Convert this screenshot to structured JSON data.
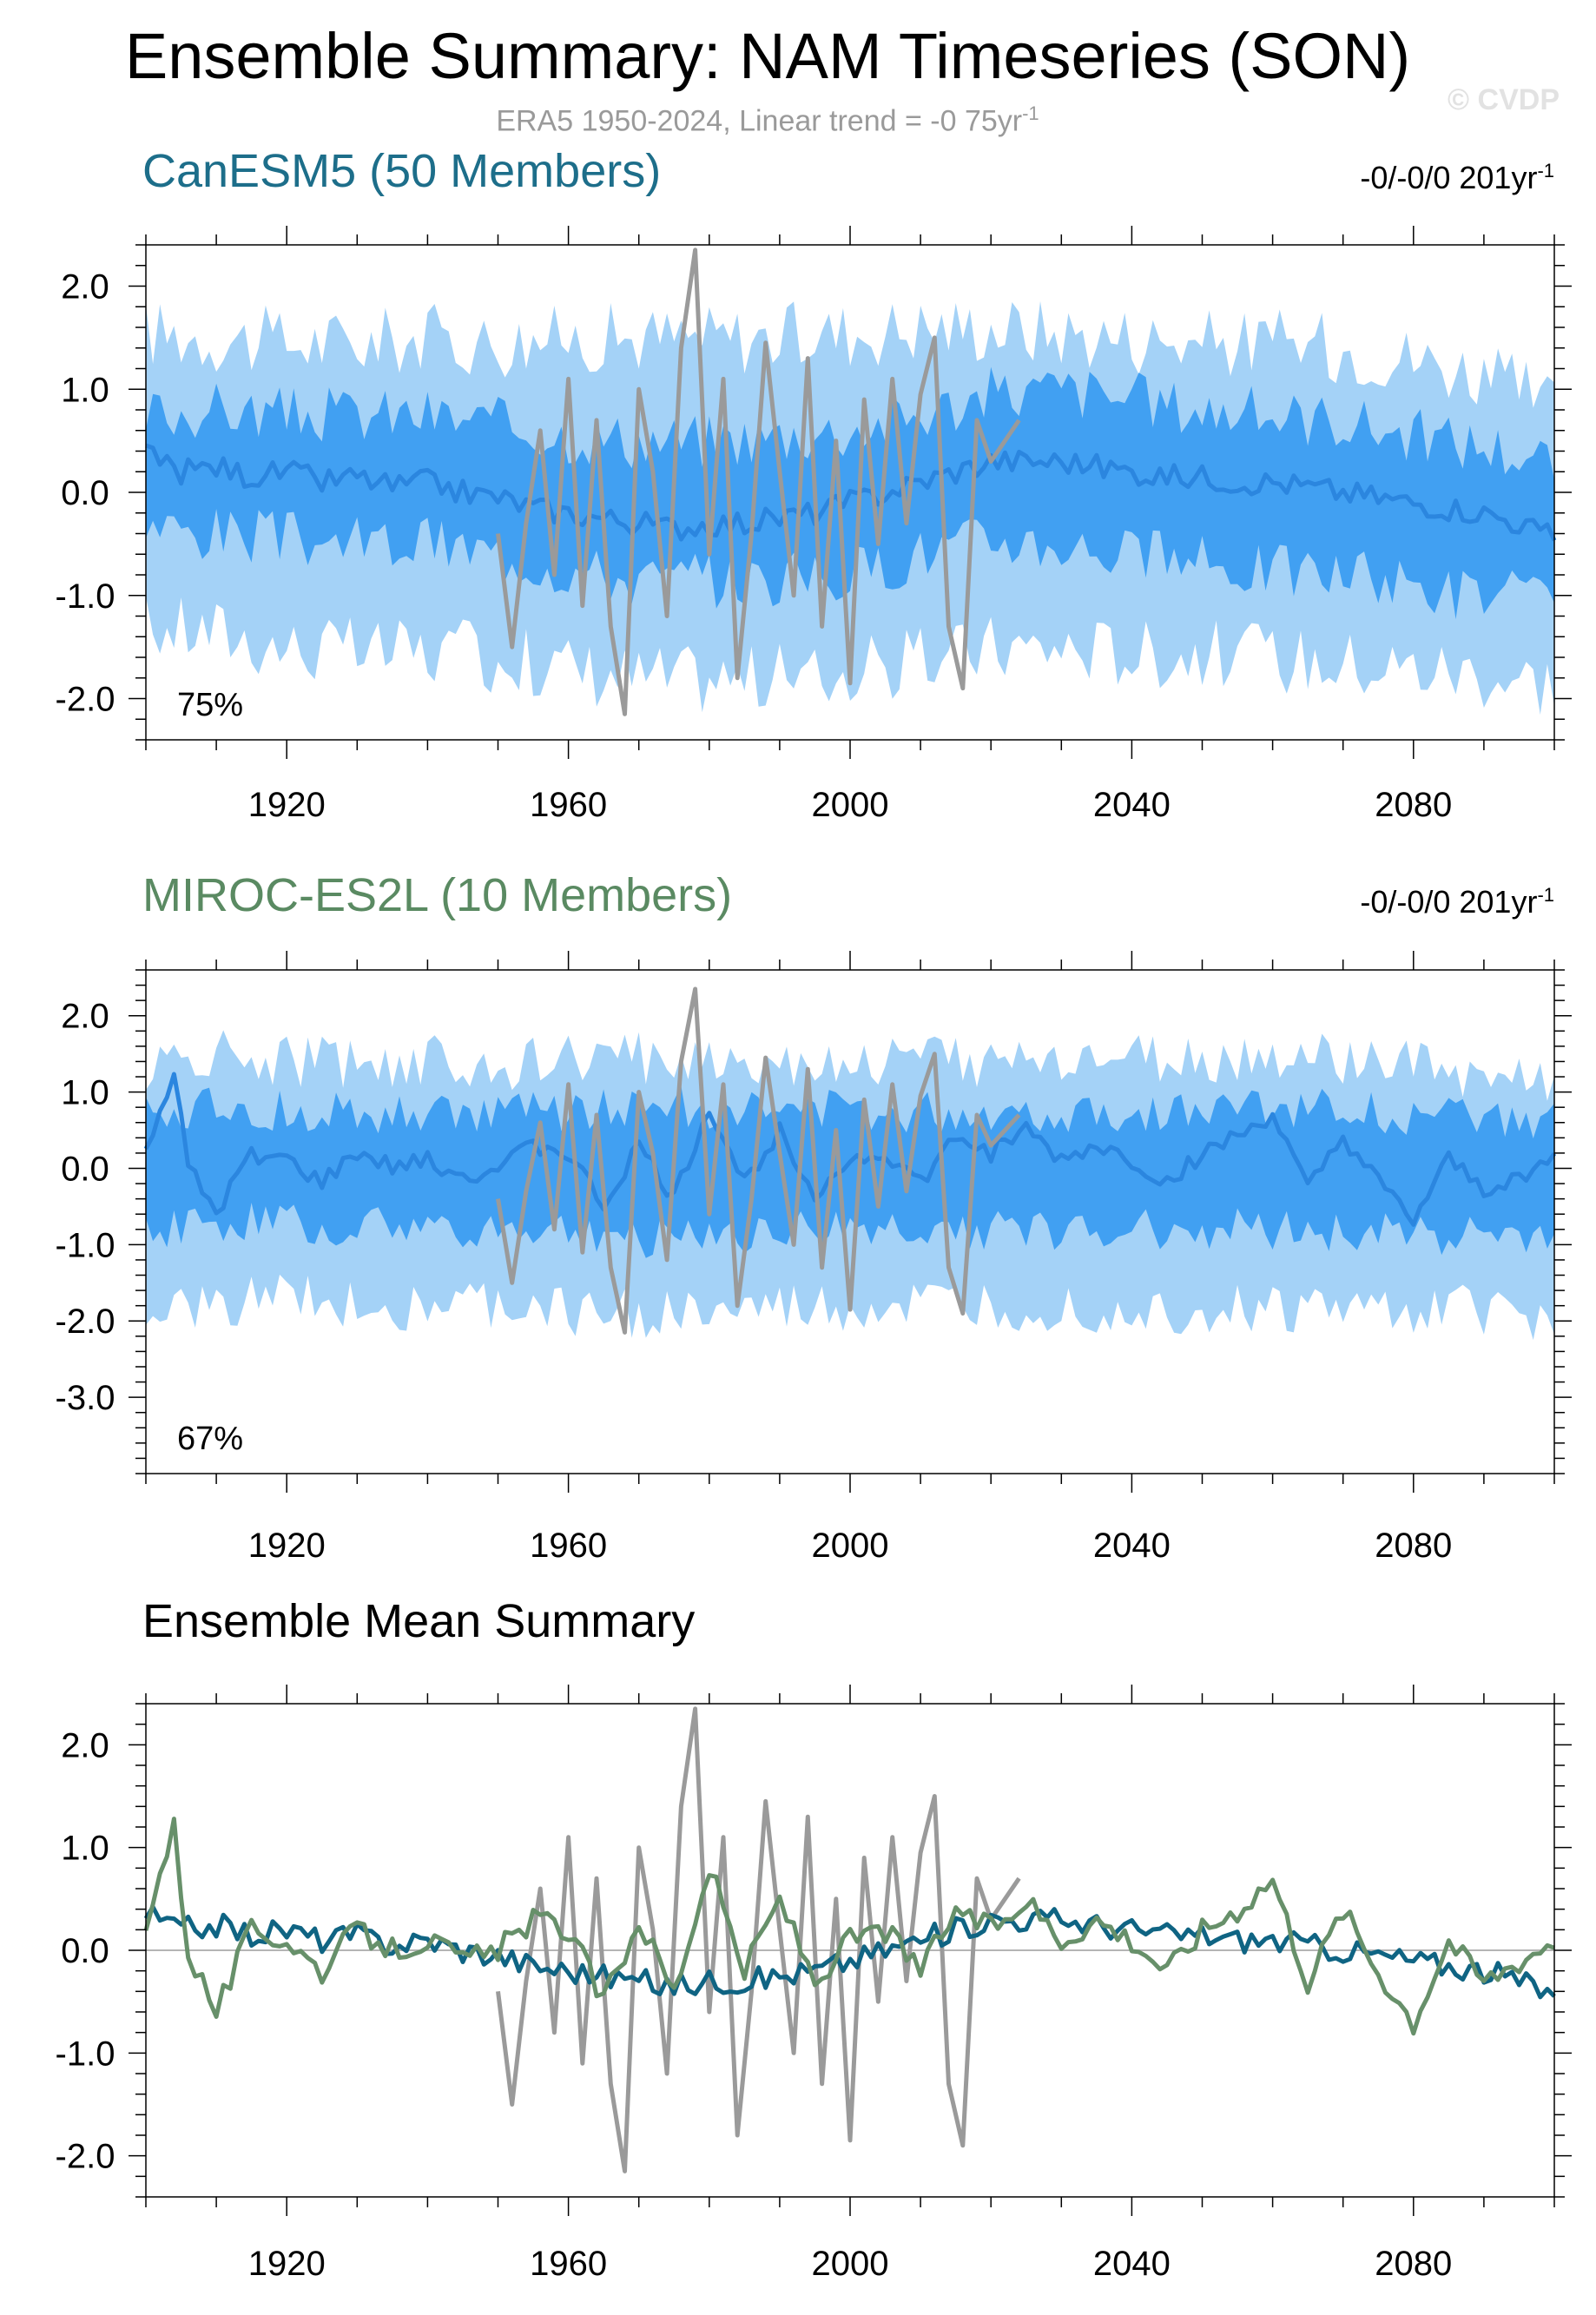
{
  "header": {
    "title": "Ensemble Summary: NAM Timeseries (SON)",
    "subtitle_text": "ERA5 1950-2024, Linear trend = -0 75yr",
    "subtitle_sup": "-1",
    "watermark": "© CVDP"
  },
  "panels": [
    {
      "title": "CanESM5 (50 Members)",
      "title_color": "#1d6e8a",
      "trend_text": "-0/-0/0 201yr",
      "trend_sup": "-1",
      "percent_label": "75%"
    },
    {
      "title": "MIROC-ES2L (10 Members)",
      "title_color": "#5a8a62",
      "trend_text": "-0/-0/0 201yr",
      "trend_sup": "-1",
      "percent_label": "67%"
    },
    {
      "title": "Ensemble Mean Summary",
      "title_color": "#000000"
    }
  ],
  "colors": {
    "outer_band": "#a4d2f7",
    "inner_band": "#41a0f2",
    "ens_mean_line": "#2b86df",
    "obs_line": "#9a9a9a",
    "canesm_mean": "#0f6483",
    "miroc_mean": "#67906a"
  },
  "chart_data": [
    {
      "type": "area",
      "title": "CanESM5 (50 Members)",
      "xlim": [
        1900,
        2100
      ],
      "ylim": [
        -2.4,
        2.4
      ],
      "x_ticks": [
        1920,
        1960,
        2000,
        2040,
        2080
      ],
      "y_ticks": [
        2.0,
        1.0,
        0.0,
        -1.0,
        -2.0
      ],
      "y_tick_labels": [
        "2.0",
        "1.0",
        "0.0",
        "-1.0",
        "-2.0"
      ],
      "series": [
        {
          "name": "",
          "role": "outer band (range)",
          "x": [
            1900,
            1910,
            1920,
            1930,
            1940,
            1950,
            1960,
            1970,
            1980,
            1990,
            2000,
            2010,
            2020,
            2030,
            2040,
            2050,
            2060,
            2070,
            2080,
            2090,
            2100
          ],
          "upper": [
            1.55,
            1.5,
            1.45,
            1.45,
            1.5,
            1.45,
            1.5,
            1.5,
            1.5,
            1.5,
            1.55,
            1.6,
            1.6,
            1.55,
            1.5,
            1.45,
            1.45,
            1.4,
            1.3,
            1.15,
            0.8
          ],
          "lower": [
            -1.3,
            -1.35,
            -1.5,
            -1.55,
            -1.55,
            -1.6,
            -1.7,
            -1.8,
            -1.8,
            -1.8,
            -1.75,
            -1.65,
            -1.5,
            -1.5,
            -1.55,
            -1.55,
            -1.6,
            -1.65,
            -1.7,
            -1.75,
            -1.85
          ]
        },
        {
          "name": "",
          "role": "inner band (interquartile)",
          "x": [
            1900,
            1910,
            1920,
            1930,
            1940,
            1950,
            1960,
            1970,
            1980,
            1990,
            2000,
            2010,
            2020,
            2030,
            2040,
            2050,
            2060,
            2070,
            2080,
            2090,
            2100
          ],
          "upper": [
            0.75,
            0.8,
            0.75,
            0.75,
            0.75,
            0.65,
            0.55,
            0.5,
            0.5,
            0.55,
            0.6,
            0.75,
            0.95,
            1.0,
            0.9,
            0.8,
            0.75,
            0.7,
            0.55,
            0.45,
            0.3
          ],
          "lower": [
            -0.35,
            -0.4,
            -0.45,
            -0.5,
            -0.5,
            -0.6,
            -0.75,
            -0.85,
            -0.85,
            -0.85,
            -0.8,
            -0.6,
            -0.45,
            -0.5,
            -0.6,
            -0.7,
            -0.75,
            -0.8,
            -0.9,
            -1.0,
            -1.05
          ]
        },
        {
          "name": "",
          "role": "ensemble mean",
          "x": [
            1900,
            1905,
            1910,
            1915,
            1920,
            1925,
            1930,
            1935,
            1940,
            1945,
            1950,
            1955,
            1960,
            1965,
            1970,
            1975,
            1980,
            1985,
            1990,
            1995,
            2000,
            2005,
            2010,
            2015,
            2020,
            2025,
            2030,
            2035,
            2040,
            2045,
            2050,
            2055,
            2060,
            2065,
            2070,
            2075,
            2080,
            2085,
            2090,
            2095,
            2100
          ],
          "y": [
            0.35,
            0.2,
            0.25,
            0.15,
            0.2,
            0.1,
            0.15,
            0.05,
            0.1,
            0.0,
            -0.05,
            -0.15,
            -0.2,
            -0.25,
            -0.3,
            -0.35,
            -0.3,
            -0.3,
            -0.25,
            -0.2,
            -0.1,
            0.0,
            0.1,
            0.2,
            0.3,
            0.3,
            0.3,
            0.25,
            0.2,
            0.15,
            0.15,
            0.1,
            0.1,
            0.05,
            0.0,
            -0.05,
            -0.1,
            -0.15,
            -0.2,
            -0.3,
            -0.45
          ]
        },
        {
          "name": "",
          "role": "ERA5 observed",
          "x": [
            1950,
            1952,
            1954,
            1956,
            1958,
            1960,
            1962,
            1964,
            1966,
            1968,
            1970,
            1972,
            1974,
            1976,
            1978,
            1980,
            1982,
            1984,
            1986,
            1988,
            1990,
            1992,
            1994,
            1996,
            1998,
            2000,
            2002,
            2004,
            2006,
            2008,
            2010,
            2012,
            2014,
            2016,
            2018,
            2020,
            2022,
            2024
          ],
          "y": [
            -0.4,
            -1.5,
            -0.3,
            0.6,
            -0.8,
            1.1,
            -1.1,
            0.7,
            -1.3,
            -2.15,
            1.0,
            0.2,
            -1.2,
            1.4,
            2.35,
            -0.6,
            1.1,
            -1.8,
            -0.4,
            1.45,
            0.2,
            -1.0,
            1.3,
            -1.3,
            0.5,
            -1.85,
            0.9,
            -0.5,
            1.1,
            -0.3,
            0.95,
            1.5,
            -1.3,
            -1.9,
            0.7,
            0.3,
            0.5,
            0.7
          ]
        }
      ],
      "annotations": [
        "75%",
        "-0/-0/0 201yr-1"
      ]
    },
    {
      "type": "area",
      "title": "MIROC-ES2L (10 Members)",
      "xlim": [
        1900,
        2100
      ],
      "ylim": [
        -4.0,
        2.6
      ],
      "x_ticks": [
        1920,
        1960,
        2000,
        2040,
        2080
      ],
      "y_ticks": [
        2.0,
        1.0,
        0.0,
        -1.0,
        -2.0,
        -3.0
      ],
      "y_tick_labels": [
        "2.0",
        "1.0",
        "0.0",
        "-1.0",
        "-2.0",
        "-3.0"
      ],
      "series": [
        {
          "name": "",
          "role": "outer band (range)",
          "x": [
            1900,
            1910,
            1920,
            1930,
            1940,
            1950,
            1960,
            1970,
            1980,
            1990,
            2000,
            2010,
            2020,
            2030,
            2040,
            2050,
            2060,
            2070,
            2080,
            2090,
            2100
          ],
          "upper": [
            1.3,
            1.5,
            1.4,
            1.4,
            1.4,
            1.35,
            1.4,
            1.45,
            1.45,
            1.4,
            1.4,
            1.45,
            1.4,
            1.45,
            1.4,
            1.4,
            1.45,
            1.4,
            1.35,
            1.2,
            1.1
          ],
          "lower": [
            -2.0,
            -1.8,
            -1.7,
            -1.75,
            -1.8,
            -1.8,
            -1.85,
            -1.9,
            -1.9,
            -1.85,
            -1.85,
            -1.8,
            -1.8,
            -1.8,
            -1.85,
            -1.85,
            -1.85,
            -1.85,
            -1.85,
            -1.85,
            -1.95
          ]
        },
        {
          "name": "",
          "role": "inner band (interquartile)",
          "x": [
            1900,
            1910,
            1920,
            1930,
            1940,
            1950,
            1960,
            1970,
            1980,
            1990,
            2000,
            2010,
            2020,
            2030,
            2040,
            2050,
            2060,
            2070,
            2080,
            2090,
            2100
          ],
          "upper": [
            0.75,
            0.8,
            0.75,
            0.7,
            0.75,
            0.7,
            0.75,
            0.8,
            0.8,
            0.75,
            0.75,
            0.75,
            0.75,
            0.75,
            0.75,
            0.75,
            0.8,
            0.75,
            0.7,
            0.6,
            0.6
          ],
          "lower": [
            -0.8,
            -0.75,
            -0.7,
            -0.75,
            -0.8,
            -0.8,
            -0.85,
            -0.9,
            -0.85,
            -0.85,
            -0.8,
            -0.8,
            -0.8,
            -0.8,
            -0.8,
            -0.8,
            -0.8,
            -0.85,
            -0.85,
            -0.9,
            -0.9
          ]
        },
        {
          "name": "",
          "role": "ensemble mean",
          "x": [
            1900,
            1904,
            1906,
            1910,
            1915,
            1920,
            1925,
            1930,
            1935,
            1940,
            1945,
            1950,
            1955,
            1960,
            1965,
            1970,
            1975,
            1980,
            1985,
            1990,
            1995,
            2000,
            2005,
            2010,
            2015,
            2020,
            2025,
            2030,
            2035,
            2040,
            2045,
            2050,
            2055,
            2060,
            2065,
            2070,
            2075,
            2080,
            2085,
            2090,
            2095,
            2100
          ],
          "y": [
            0.3,
            1.2,
            0.0,
            -0.6,
            0.2,
            0.1,
            -0.2,
            0.2,
            0.0,
            0.1,
            -0.1,
            0.0,
            0.3,
            0.2,
            -0.5,
            0.3,
            -0.4,
            0.8,
            -0.2,
            0.5,
            -0.3,
            0.1,
            0.2,
            -0.2,
            0.4,
            0.2,
            0.5,
            0.1,
            0.3,
            0.1,
            -0.2,
            0.2,
            0.4,
            0.7,
            -0.3,
            0.4,
            -0.2,
            -0.7,
            0.1,
            -0.3,
            -0.1,
            0.1
          ]
        },
        {
          "name": "",
          "role": "ERA5 observed",
          "x": [
            1950,
            1952,
            1954,
            1956,
            1958,
            1960,
            1962,
            1964,
            1966,
            1968,
            1970,
            1972,
            1974,
            1976,
            1978,
            1980,
            1982,
            1984,
            1986,
            1988,
            1990,
            1992,
            1994,
            1996,
            1998,
            2000,
            2002,
            2004,
            2006,
            2008,
            2010,
            2012,
            2014,
            2016,
            2018,
            2020,
            2022,
            2024
          ],
          "y": [
            -0.4,
            -1.5,
            -0.3,
            0.6,
            -0.8,
            1.1,
            -1.1,
            0.7,
            -1.3,
            -2.15,
            1.0,
            0.2,
            -1.2,
            1.4,
            2.35,
            -0.6,
            1.1,
            -1.8,
            -0.4,
            1.45,
            0.2,
            -1.0,
            1.3,
            -1.3,
            0.5,
            -1.85,
            0.9,
            -0.5,
            1.1,
            -0.3,
            0.95,
            1.5,
            -1.3,
            -1.9,
            0.7,
            0.3,
            0.5,
            0.7
          ]
        }
      ],
      "annotations": [
        "67%",
        "-0/-0/0 201yr-1"
      ]
    },
    {
      "type": "line",
      "title": "Ensemble Mean Summary",
      "xlim": [
        1900,
        2100
      ],
      "ylim": [
        -2.4,
        2.4
      ],
      "x_ticks": [
        1920,
        1960,
        2000,
        2040,
        2080
      ],
      "y_ticks": [
        2.0,
        1.0,
        0.0,
        -1.0,
        -2.0
      ],
      "y_tick_labels": [
        "2.0",
        "1.0",
        "0.0",
        "-1.0",
        "-2.0"
      ],
      "series": [
        {
          "name": "",
          "role": "ERA5 observed",
          "x": [
            1950,
            1952,
            1954,
            1956,
            1958,
            1960,
            1962,
            1964,
            1966,
            1968,
            1970,
            1972,
            1974,
            1976,
            1978,
            1980,
            1982,
            1984,
            1986,
            1988,
            1990,
            1992,
            1994,
            1996,
            1998,
            2000,
            2002,
            2004,
            2006,
            2008,
            2010,
            2012,
            2014,
            2016,
            2018,
            2020,
            2022,
            2024
          ],
          "y": [
            -0.4,
            -1.5,
            -0.3,
            0.6,
            -0.8,
            1.1,
            -1.1,
            0.7,
            -1.3,
            -2.15,
            1.0,
            0.2,
            -1.2,
            1.4,
            2.35,
            -0.6,
            1.1,
            -1.8,
            -0.4,
            1.45,
            0.2,
            -1.0,
            1.3,
            -1.3,
            0.5,
            -1.85,
            0.9,
            -0.5,
            1.1,
            -0.3,
            0.95,
            1.5,
            -1.3,
            -1.9,
            0.7,
            0.3,
            0.5,
            0.7
          ]
        },
        {
          "name": "",
          "role": "CanESM5 ensemble mean",
          "x": [
            1900,
            1905,
            1910,
            1915,
            1920,
            1925,
            1930,
            1935,
            1940,
            1945,
            1950,
            1955,
            1960,
            1965,
            1970,
            1975,
            1980,
            1985,
            1990,
            1995,
            2000,
            2005,
            2010,
            2015,
            2020,
            2025,
            2030,
            2035,
            2040,
            2045,
            2050,
            2055,
            2060,
            2065,
            2070,
            2075,
            2080,
            2085,
            2090,
            2095,
            2100
          ],
          "y": [
            0.35,
            0.2,
            0.25,
            0.15,
            0.2,
            0.1,
            0.15,
            0.05,
            0.1,
            0.0,
            -0.05,
            -0.15,
            -0.2,
            -0.25,
            -0.3,
            -0.35,
            -0.3,
            -0.3,
            -0.25,
            -0.2,
            -0.1,
            0.0,
            0.1,
            0.2,
            0.3,
            0.3,
            0.3,
            0.25,
            0.2,
            0.15,
            0.15,
            0.1,
            0.1,
            0.05,
            0.0,
            -0.05,
            -0.1,
            -0.15,
            -0.2,
            -0.3,
            -0.45
          ]
        },
        {
          "name": "",
          "role": "MIROC-ES2L ensemble mean",
          "x": [
            1900,
            1904,
            1906,
            1910,
            1915,
            1920,
            1925,
            1930,
            1935,
            1940,
            1945,
            1950,
            1955,
            1960,
            1965,
            1970,
            1975,
            1980,
            1985,
            1990,
            1995,
            2000,
            2005,
            2010,
            2015,
            2020,
            2025,
            2030,
            2035,
            2040,
            2045,
            2050,
            2055,
            2060,
            2065,
            2070,
            2075,
            2080,
            2085,
            2090,
            2095,
            2100
          ],
          "y": [
            0.3,
            1.2,
            0.0,
            -0.6,
            0.2,
            0.1,
            -0.2,
            0.2,
            0.0,
            0.1,
            -0.1,
            0.0,
            0.3,
            0.2,
            -0.5,
            0.3,
            -0.4,
            0.8,
            -0.2,
            0.5,
            -0.3,
            0.1,
            0.2,
            -0.2,
            0.4,
            0.2,
            0.5,
            0.1,
            0.3,
            0.1,
            -0.2,
            0.2,
            0.4,
            0.7,
            -0.3,
            0.4,
            -0.2,
            -0.7,
            0.1,
            -0.3,
            -0.1,
            0.1
          ]
        }
      ]
    }
  ]
}
